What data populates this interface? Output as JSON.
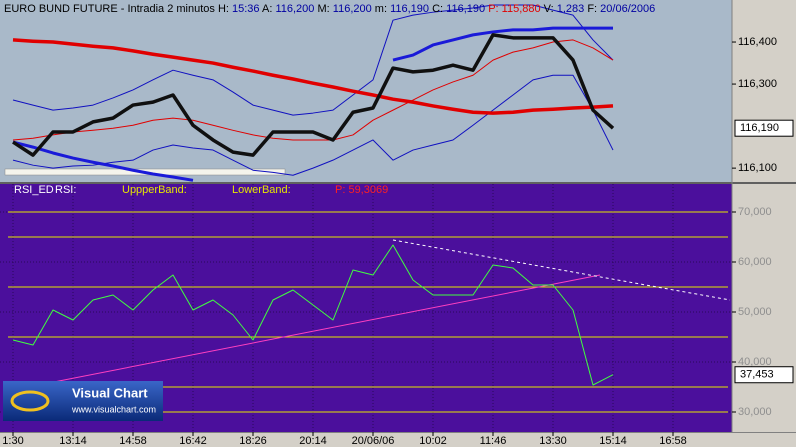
{
  "chart_data": [
    {
      "type": "line",
      "title": "EURO BUND FUTURE - Intradia 2 minutos",
      "stats": [
        {
          "label": "H:",
          "value": "15:36"
        },
        {
          "label": "A:",
          "value": "116,200"
        },
        {
          "label": "M:",
          "value": "116,200"
        },
        {
          "label": "m:",
          "value": "116,190"
        },
        {
          "label": "C:",
          "value": "116,190"
        },
        {
          "label": "P:",
          "value": "115,880",
          "color": "#e00000"
        },
        {
          "label": "V:",
          "value": "1,283"
        },
        {
          "label": "F:",
          "value": "20/06/2006"
        }
      ],
      "ylim": [
        116.067,
        116.5
      ],
      "yticks": [
        {
          "value": 116.1,
          "label": "116,100"
        },
        {
          "value": 116.3,
          "label": "116,300"
        },
        {
          "value": 116.4,
          "label": "116,400"
        }
      ],
      "last_label": "116,190",
      "series": [
        {
          "color": "#1010c0",
          "width": 1,
          "values": [
            116.262,
            116.25,
            116.238,
            116.243,
            116.25,
            116.267,
            116.286,
            116.31,
            116.333,
            116.321,
            116.31,
            116.281,
            116.25,
            116.238,
            116.226,
            116.231,
            116.238,
            116.274,
            116.31,
            116.452,
            116.464,
            116.471,
            116.476,
            116.481,
            116.488,
            116.488,
            116.488,
            116.476,
            116.464,
            116.405,
            116.357,
            null,
            null,
            null,
            null,
            null,
            null
          ]
        },
        {
          "color": "#1010c0",
          "width": 1,
          "values": [
            116.119,
            116.107,
            116.1,
            116.105,
            116.107,
            116.114,
            116.119,
            116.143,
            116.155,
            116.148,
            116.143,
            116.119,
            116.095,
            116.09,
            116.083,
            116.1,
            116.119,
            116.143,
            116.167,
            116.119,
            116.143,
            116.155,
            116.167,
            116.202,
            116.238,
            116.274,
            116.31,
            116.321,
            116.321,
            116.238,
            116.143,
            null,
            null,
            null,
            null,
            null,
            null
          ]
        },
        {
          "color": "#1a1ad8",
          "width": 3,
          "values": [
            116.162,
            116.15,
            116.136,
            116.124,
            116.114,
            116.105,
            116.095,
            116.086,
            116.079,
            116.071,
            null,
            null,
            null,
            null,
            null,
            null,
            null,
            null,
            null,
            116.357,
            116.369,
            116.393,
            116.405,
            116.417,
            116.424,
            116.429,
            116.429,
            116.433,
            116.433,
            116.433,
            116.433,
            null,
            null,
            null,
            null,
            null,
            null
          ]
        },
        {
          "color": "#e00000",
          "width": 1,
          "values": [
            116.167,
            116.171,
            116.179,
            116.186,
            116.19,
            116.195,
            116.202,
            116.214,
            116.219,
            116.214,
            116.202,
            116.19,
            116.179,
            116.171,
            116.167,
            116.167,
            116.167,
            116.179,
            116.214,
            116.238,
            116.262,
            116.286,
            116.305,
            116.321,
            116.357,
            116.376,
            116.386,
            116.4,
            116.405,
            116.386,
            116.357,
            null,
            null,
            null,
            null,
            null,
            null
          ]
        },
        {
          "color": "#e00000",
          "width": 3.5,
          "values": [
            116.405,
            116.402,
            116.4,
            116.395,
            116.39,
            116.386,
            116.379,
            116.371,
            116.364,
            116.357,
            116.35,
            116.34,
            116.331,
            116.321,
            116.312,
            116.302,
            116.293,
            116.283,
            116.274,
            116.264,
            116.257,
            116.248,
            116.24,
            116.233,
            116.231,
            116.233,
            116.238,
            116.24,
            116.243,
            116.245,
            116.248,
            null,
            null,
            null,
            null,
            null,
            null
          ]
        },
        {
          "color": "#101010",
          "width": 3.5,
          "values": [
            116.162,
            116.131,
            116.186,
            116.186,
            116.21,
            116.219,
            116.25,
            116.257,
            116.274,
            116.202,
            116.167,
            116.138,
            116.131,
            116.186,
            116.186,
            116.186,
            116.167,
            116.233,
            116.243,
            116.338,
            116.329,
            116.333,
            116.345,
            116.333,
            116.417,
            116.41,
            116.41,
            116.41,
            116.357,
            116.238,
            116.195,
            null,
            null,
            null,
            null,
            null,
            null
          ]
        }
      ]
    },
    {
      "type": "line",
      "legend": [
        {
          "text": "RSI_ED",
          "color": "#ffffff"
        },
        {
          "text": "RSI:",
          "color": "#ffffff"
        },
        {
          "text": "UppperBand:",
          "color": "#e6e600"
        },
        {
          "text": "LowerBand:",
          "color": "#e6e600"
        },
        {
          "text": "P: 59,3069",
          "color": "#ff2020"
        }
      ],
      "categories": [
        "1:30",
        null,
        null,
        "13:14",
        null,
        null,
        "14:58",
        null,
        null,
        "16:42",
        null,
        null,
        "18:26",
        null,
        null,
        "20:14",
        null,
        null,
        "20/06/06",
        null,
        null,
        "10:02",
        null,
        null,
        "11:46",
        null,
        null,
        "13:30",
        null,
        null,
        "15:14",
        null,
        null,
        "16:58",
        null,
        null,
        null
      ],
      "ylim": [
        26,
        75.6
      ],
      "yticks": [
        {
          "value": 30,
          "label": "30,000"
        },
        {
          "value": 40,
          "label": "40,000"
        },
        {
          "value": 50,
          "label": "50,000"
        },
        {
          "value": 60,
          "label": "60,000"
        },
        {
          "value": 70,
          "label": "70,000"
        }
      ],
      "levels": [
        30,
        35,
        45,
        55,
        65,
        70
      ],
      "level_color": "#e6e600",
      "grid": true,
      "last_label": "37,453",
      "series": [
        {
          "color": "#40ff40",
          "width": 1,
          "values": [
            44.4,
            43.4,
            50.4,
            48.4,
            52.4,
            53.4,
            50.4,
            54.4,
            57.4,
            50.4,
            52.4,
            49.4,
            44.4,
            52.4,
            54.4,
            51.4,
            48.4,
            58.4,
            57.4,
            63.4,
            56.4,
            53.4,
            53.4,
            53.4,
            59.4,
            58.8,
            55.4,
            55.4,
            50.4,
            35.4,
            37.453,
            null,
            null,
            null,
            null,
            null,
            null
          ]
        }
      ],
      "trendlines": [
        {
          "color": "#ff40c0",
          "dashed": false,
          "x": [
            0,
            29.35
          ],
          "values": [
            34.4,
            57.4
          ]
        },
        {
          "color": "#ffffff",
          "dashed": true,
          "x": [
            19,
            35.85
          ],
          "values": [
            64.4,
            52.4
          ]
        }
      ],
      "watermark": [
        "Visual Chart",
        "www.visualchart.com"
      ]
    }
  ]
}
